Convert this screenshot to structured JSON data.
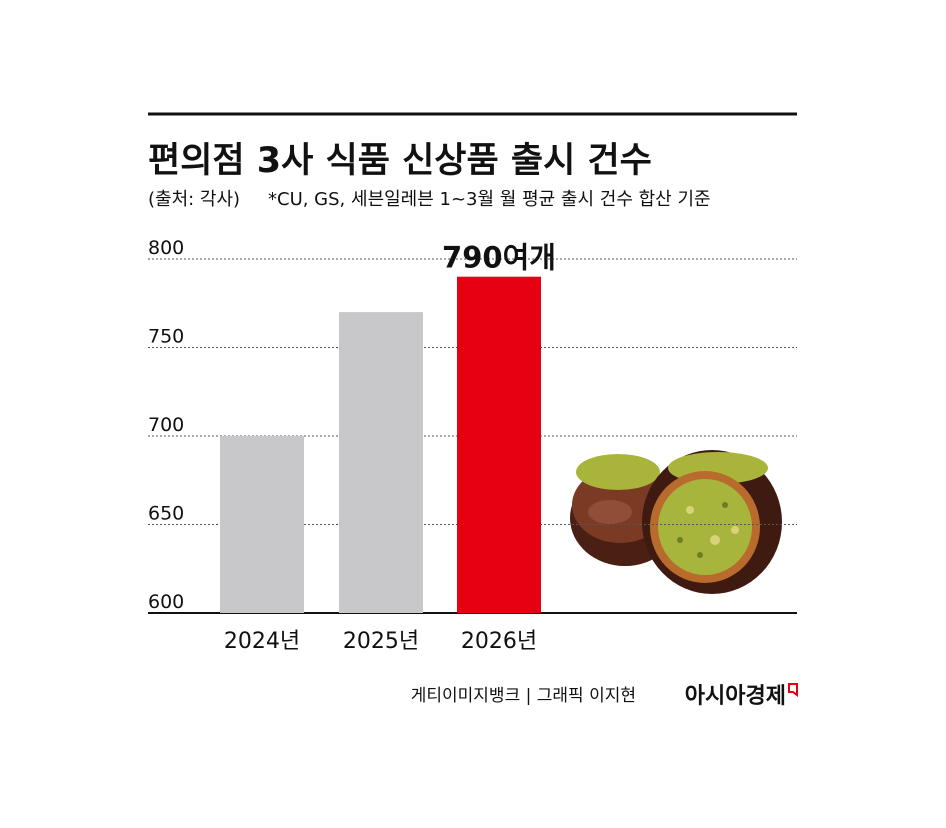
{
  "chart_data": {
    "type": "bar",
    "title": "편의점 3사 식품 신상품 출시 건수",
    "source": "(출처: 각사)",
    "note": "*CU, GS, 세븐일레븐 1~3월 월 평균 출시 건수 합산 기준",
    "categories": [
      "2024년",
      "2025년",
      "2026년"
    ],
    "values": [
      700,
      770,
      790
    ],
    "value_labels": [
      null,
      null,
      "790여개"
    ],
    "colors": [
      "#c8c8ca",
      "#c8c8ca",
      "#e60012"
    ],
    "ylim": [
      600,
      800
    ],
    "yticks": [
      600,
      650,
      700,
      750,
      800
    ],
    "grid": true,
    "credit": "게티이미지뱅크 | 그래픽 이지현",
    "brand": "아시아경제"
  }
}
